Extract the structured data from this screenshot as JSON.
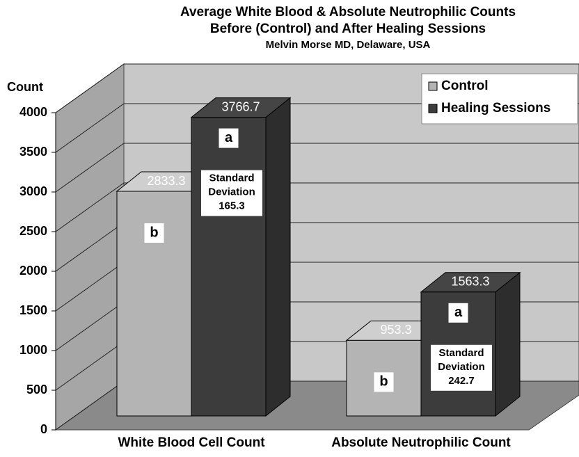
{
  "chart_data": {
    "type": "bar",
    "title": [
      "Average White Blood & Absolute Neutrophilic Counts",
      "Before (Control) and After Healing Sessions"
    ],
    "subtitle": "Melvin Morse MD, Delaware, USA",
    "y_label": "Count",
    "categories": [
      "White Blood Cell Count",
      "Absolute Neutrophilic Count"
    ],
    "series": [
      {
        "name": "Control",
        "color": "#b4b4b4",
        "values": [
          2833.3,
          953.3
        ],
        "letters": [
          "b",
          "b"
        ]
      },
      {
        "name": "Healing Sessions",
        "color": "#3c3c3c",
        "values": [
          3766.7,
          1563.3
        ],
        "letters": [
          "a",
          "a"
        ],
        "sd_labels": [
          {
            "lines": [
              "Standard",
              "Deviation"
            ],
            "value": 165.3
          },
          {
            "lines": [
              "Standard",
              "Deviation"
            ],
            "value": 242.7
          }
        ]
      }
    ],
    "ylim": [
      0,
      4000
    ],
    "yticks": [
      0,
      500,
      1000,
      1500,
      2000,
      2500,
      3000,
      3500,
      4000
    ],
    "grid": true,
    "legend": "top-right"
  }
}
